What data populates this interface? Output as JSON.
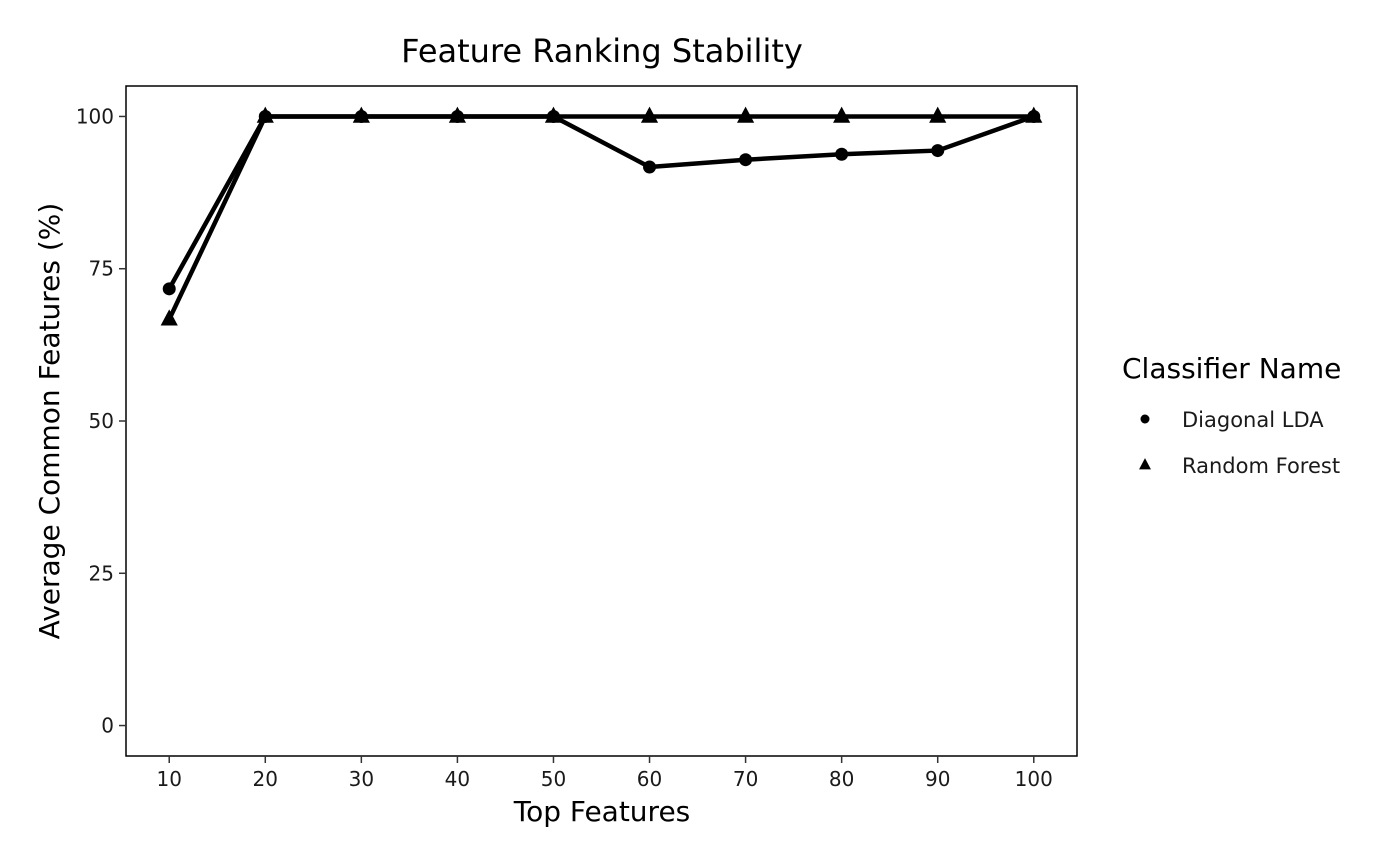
{
  "chart_data": {
    "type": "line",
    "title": "Feature Ranking Stability",
    "xlabel": "Top Features",
    "ylabel": "Average Common Features (%)",
    "x": [
      10,
      20,
      30,
      40,
      50,
      60,
      70,
      80,
      90,
      100
    ],
    "xticks": [
      10,
      20,
      30,
      40,
      50,
      60,
      70,
      80,
      90,
      100
    ],
    "yticks": [
      0,
      25,
      50,
      75,
      100
    ],
    "xlim": [
      5.5,
      104.5
    ],
    "ylim": [
      -5,
      105
    ],
    "grid": false,
    "legend": {
      "title": "Classifier Name",
      "position": "right"
    },
    "series": [
      {
        "name": "Diagonal LDA",
        "marker": "circle",
        "color": "#000000",
        "values": [
          71.7,
          100,
          100,
          100,
          100,
          91.7,
          92.9,
          93.8,
          94.4,
          100
        ]
      },
      {
        "name": "Random Forest",
        "marker": "triangle",
        "color": "#000000",
        "values": [
          66.7,
          100,
          100,
          100,
          100,
          100,
          100,
          100,
          100,
          100
        ]
      }
    ]
  }
}
